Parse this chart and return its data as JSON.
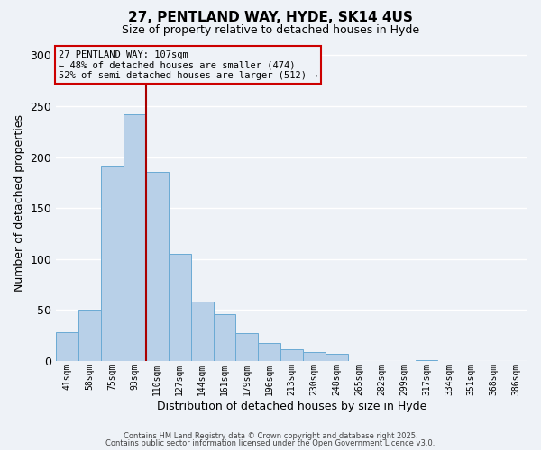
{
  "title": "27, PENTLAND WAY, HYDE, SK14 4US",
  "subtitle": "Size of property relative to detached houses in Hyde",
  "xlabel": "Distribution of detached houses by size in Hyde",
  "ylabel": "Number of detached properties",
  "bar_labels": [
    "41sqm",
    "58sqm",
    "75sqm",
    "93sqm",
    "110sqm",
    "127sqm",
    "144sqm",
    "161sqm",
    "179sqm",
    "196sqm",
    "213sqm",
    "230sqm",
    "248sqm",
    "265sqm",
    "282sqm",
    "299sqm",
    "317sqm",
    "334sqm",
    "351sqm",
    "368sqm",
    "386sqm"
  ],
  "bar_values": [
    28,
    50,
    191,
    242,
    185,
    105,
    58,
    46,
    27,
    18,
    11,
    9,
    7,
    0,
    0,
    0,
    1,
    0,
    0,
    0,
    0
  ],
  "bar_color": "#b8d0e8",
  "bar_edge_color": "#6aaad4",
  "vline_color": "#aa0000",
  "vline_x_index": 3.5,
  "annotation_box_text": "27 PENTLAND WAY: 107sqm\n← 48% of detached houses are smaller (474)\n52% of semi-detached houses are larger (512) →",
  "annotation_box_edge_color": "#cc0000",
  "ylim": [
    0,
    310
  ],
  "yticks": [
    0,
    50,
    100,
    150,
    200,
    250,
    300
  ],
  "background_color": "#eef2f7",
  "grid_color": "#ffffff",
  "footer_line1": "Contains HM Land Registry data © Crown copyright and database right 2025.",
  "footer_line2": "Contains public sector information licensed under the Open Government Licence v3.0."
}
